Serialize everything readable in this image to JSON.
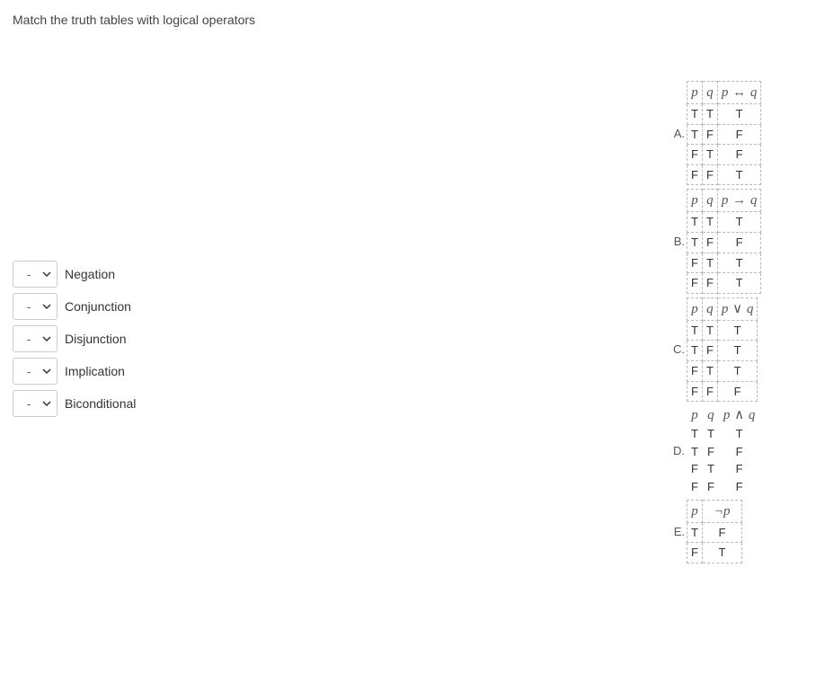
{
  "question": "Match the truth tables with logical operators",
  "select_placeholder": "-",
  "operators": [
    {
      "label": "Negation"
    },
    {
      "label": "Conjunction"
    },
    {
      "label": "Disjunction"
    },
    {
      "label": "Implication"
    },
    {
      "label": "Biconditional"
    }
  ],
  "tables": [
    {
      "letter": "A.",
      "style": "dashed",
      "header": {
        "c1": "p",
        "c2": "q",
        "c3": "p",
        "op": "↔",
        "c3b": "q"
      },
      "rows": [
        {
          "a": "T",
          "b": "T",
          "c": "T"
        },
        {
          "a": "T",
          "b": "F",
          "c": "F"
        },
        {
          "a": "F",
          "b": "T",
          "c": "F"
        },
        {
          "a": "F",
          "b": "F",
          "c": "T"
        }
      ]
    },
    {
      "letter": "B.",
      "style": "dashed",
      "header": {
        "c1": "p",
        "c2": "q",
        "c3": "p",
        "op": "→",
        "c3b": "q"
      },
      "rows": [
        {
          "a": "T",
          "b": "T",
          "c": "T"
        },
        {
          "a": "T",
          "b": "F",
          "c": "F"
        },
        {
          "a": "F",
          "b": "T",
          "c": "T"
        },
        {
          "a": "F",
          "b": "F",
          "c": "T"
        }
      ]
    },
    {
      "letter": "C.",
      "style": "dashed",
      "header": {
        "c1": "p",
        "c2": "q",
        "c3": "p",
        "op": "∨",
        "c3b": "q"
      },
      "rows": [
        {
          "a": "T",
          "b": "T",
          "c": "T"
        },
        {
          "a": "T",
          "b": "F",
          "c": "T"
        },
        {
          "a": "F",
          "b": "T",
          "c": "T"
        },
        {
          "a": "F",
          "b": "F",
          "c": "F"
        }
      ]
    },
    {
      "letter": "D.",
      "style": "plain",
      "header": {
        "c1": "p",
        "c2": "q",
        "c3": "p",
        "op": "∧",
        "c3b": "q"
      },
      "rows": [
        {
          "a": "T",
          "b": "T",
          "c": "T"
        },
        {
          "a": "T",
          "b": "F",
          "c": "F"
        },
        {
          "a": "F",
          "b": "T",
          "c": "F"
        },
        {
          "a": "F",
          "b": "F",
          "c": "F"
        }
      ]
    },
    {
      "letter": "E.",
      "style": "dashed",
      "header": {
        "c1": "p",
        "c2": "",
        "c3": "",
        "op": "¬",
        "c3b": "p"
      },
      "rows": [
        {
          "a": "T",
          "b": "",
          "c": "F"
        },
        {
          "a": "F",
          "b": "",
          "c": "T"
        }
      ],
      "two_col": true
    }
  ],
  "colors": {
    "text": "#333333",
    "muted": "#555555",
    "border": "#cccccc",
    "dash_border": "#bbbbbb",
    "background": "#ffffff"
  }
}
